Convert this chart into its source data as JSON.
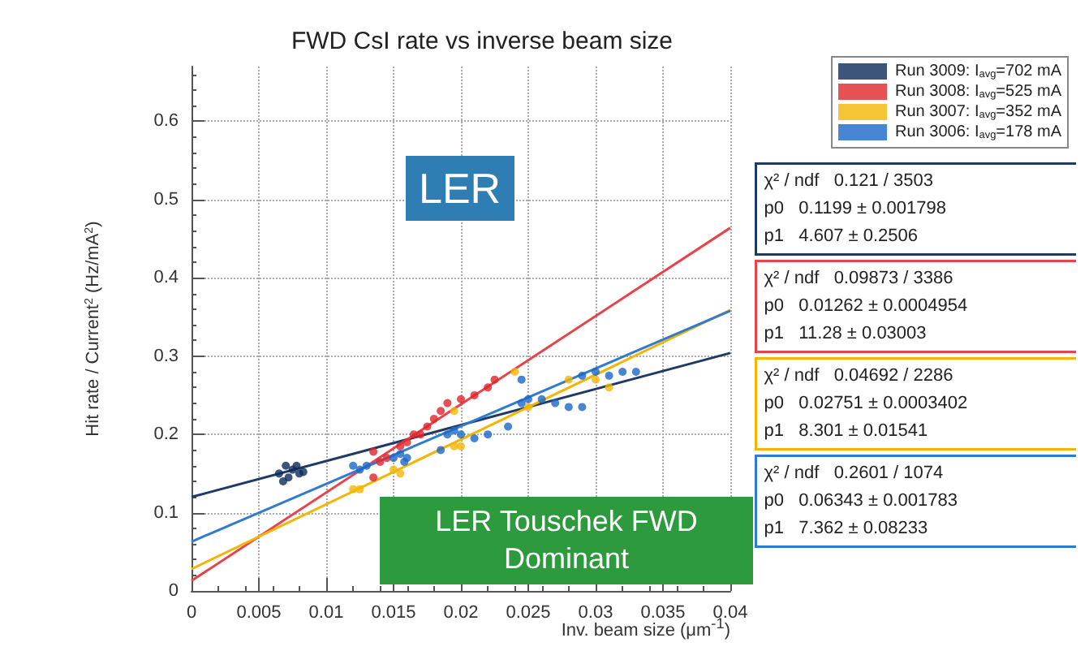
{
  "chart_data": {
    "type": "scatter",
    "title": "FWD CsI rate vs inverse beam size",
    "xlabel": "Inv. beam size (μm$^{-1}$)",
    "ylabel": "Hit rate / Current$^{2}$ (Hz/mA$^{2}$)",
    "xlim": [
      0,
      0.04
    ],
    "xticks": [
      0,
      0.005,
      0.01,
      0.015,
      0.02,
      0.025,
      0.03,
      0.035,
      0.04
    ],
    "ylim": [
      0,
      0.67
    ],
    "yticks": [
      0,
      0.1,
      0.2,
      0.3,
      0.4,
      0.5,
      0.6
    ],
    "grid": true,
    "legend": "top right",
    "series": [
      {
        "name": "Run 3009: I$_{avg}$=702 mA",
        "color": "#0c2a5b",
        "marker": "circle",
        "x": [
          0.0065,
          0.007,
          0.0072,
          0.0075,
          0.008,
          0.0068,
          0.0078,
          0.0083
        ],
        "values": [
          0.15,
          0.16,
          0.145,
          0.155,
          0.15,
          0.14,
          0.16,
          0.152
        ]
      },
      {
        "name": "Run 3008: I$_{avg}$=525 mA",
        "color": "#e0262b",
        "marker": "circle",
        "x": [
          0.0135,
          0.014,
          0.0145,
          0.0155,
          0.016,
          0.017,
          0.0175,
          0.018,
          0.0185,
          0.019,
          0.02,
          0.021,
          0.022,
          0.0225,
          0.0165,
          0.0135
        ],
        "values": [
          0.145,
          0.165,
          0.17,
          0.185,
          0.19,
          0.2,
          0.21,
          0.22,
          0.23,
          0.24,
          0.245,
          0.25,
          0.26,
          0.27,
          0.2,
          0.178
        ]
      },
      {
        "name": "Run 3007: I$_{avg}$=352 mA",
        "color": "#f2b705",
        "marker": "circle",
        "x": [
          0.012,
          0.0125,
          0.015,
          0.0155,
          0.0195,
          0.02,
          0.0195,
          0.025,
          0.028,
          0.03,
          0.031,
          0.024
        ],
        "values": [
          0.13,
          0.13,
          0.155,
          0.15,
          0.185,
          0.185,
          0.23,
          0.235,
          0.27,
          0.27,
          0.26,
          0.28
        ]
      },
      {
        "name": "Run 3006: I$_{avg}$=178 mA",
        "color": "#1a66c8",
        "marker": "circle",
        "x": [
          0.012,
          0.0125,
          0.013,
          0.015,
          0.0155,
          0.016,
          0.0158,
          0.019,
          0.0195,
          0.02,
          0.021,
          0.022,
          0.0235,
          0.0245,
          0.0245,
          0.025,
          0.026,
          0.027,
          0.028,
          0.029,
          0.03,
          0.031,
          0.032,
          0.033,
          0.029,
          0.0185
        ],
        "values": [
          0.16,
          0.155,
          0.16,
          0.17,
          0.175,
          0.17,
          0.165,
          0.2,
          0.205,
          0.2,
          0.195,
          0.2,
          0.21,
          0.24,
          0.27,
          0.245,
          0.245,
          0.24,
          0.235,
          0.275,
          0.28,
          0.275,
          0.28,
          0.28,
          0.235,
          0.18
        ]
      },
      {
        "type": "line",
        "color": "#1f3a66",
        "x": [
          0,
          0.04
        ],
        "values": [
          0.12,
          0.304
        ]
      },
      {
        "type": "line",
        "color": "#e8434a",
        "x": [
          0,
          0.04
        ],
        "values": [
          0.013,
          0.464
        ]
      },
      {
        "type": "line",
        "color": "#f5b400",
        "x": [
          0,
          0.04
        ],
        "values": [
          0.028,
          0.359
        ]
      },
      {
        "type": "line",
        "color": "#2e7bd0",
        "x": [
          0,
          0.04
        ],
        "values": [
          0.063,
          0.358
        ]
      }
    ],
    "annotations": [
      "LER",
      "LER Touschek FWD Dominant",
      "χ² / ndf   0.121 / 3503",
      "p0   0.1199 ± 0.001798",
      "p1   4.607 ± 0.2506",
      "χ² / ndf   0.09873 / 3386",
      "p0   0.01262 ± 0.0004954",
      "p1   11.28 ± 0.03003",
      "χ² / ndf   0.04692 / 2286",
      "p0   0.02751 ± 0.0003402",
      "p1   8.301 ± 0.01541",
      "χ² / ndf   0.2601 / 1074",
      "p0   0.06343 ± 0.001783",
      "p1   7.362 ± 0.08233"
    ]
  }
}
